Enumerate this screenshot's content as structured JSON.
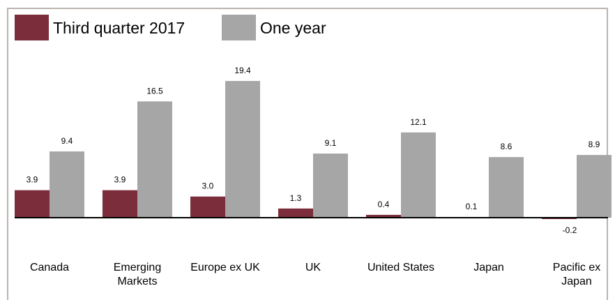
{
  "colors": {
    "series1": "#7b2d3b",
    "series2": "#a6a6a6",
    "axis": "#000000",
    "frame": "#b9b4af"
  },
  "chart_data": {
    "type": "bar",
    "title": "",
    "xlabel": "",
    "ylabel": "",
    "ylim": [
      -1.4,
      21
    ],
    "grid": false,
    "legend_position": "top-left",
    "categories": [
      [
        "Canada"
      ],
      [
        "Emerging",
        "Markets"
      ],
      [
        "Europe ex UK"
      ],
      [
        "UK"
      ],
      [
        "United States"
      ],
      [
        "Japan"
      ],
      [
        "Pacific ex",
        "Japan"
      ]
    ],
    "series": [
      {
        "name": "Third quarter 2017",
        "values": [
          3.9,
          3.9,
          3.0,
          1.3,
          0.4,
          0.1,
          -0.2
        ]
      },
      {
        "name": "One year",
        "values": [
          9.4,
          16.5,
          19.4,
          9.1,
          12.1,
          8.6,
          8.9
        ]
      }
    ]
  }
}
